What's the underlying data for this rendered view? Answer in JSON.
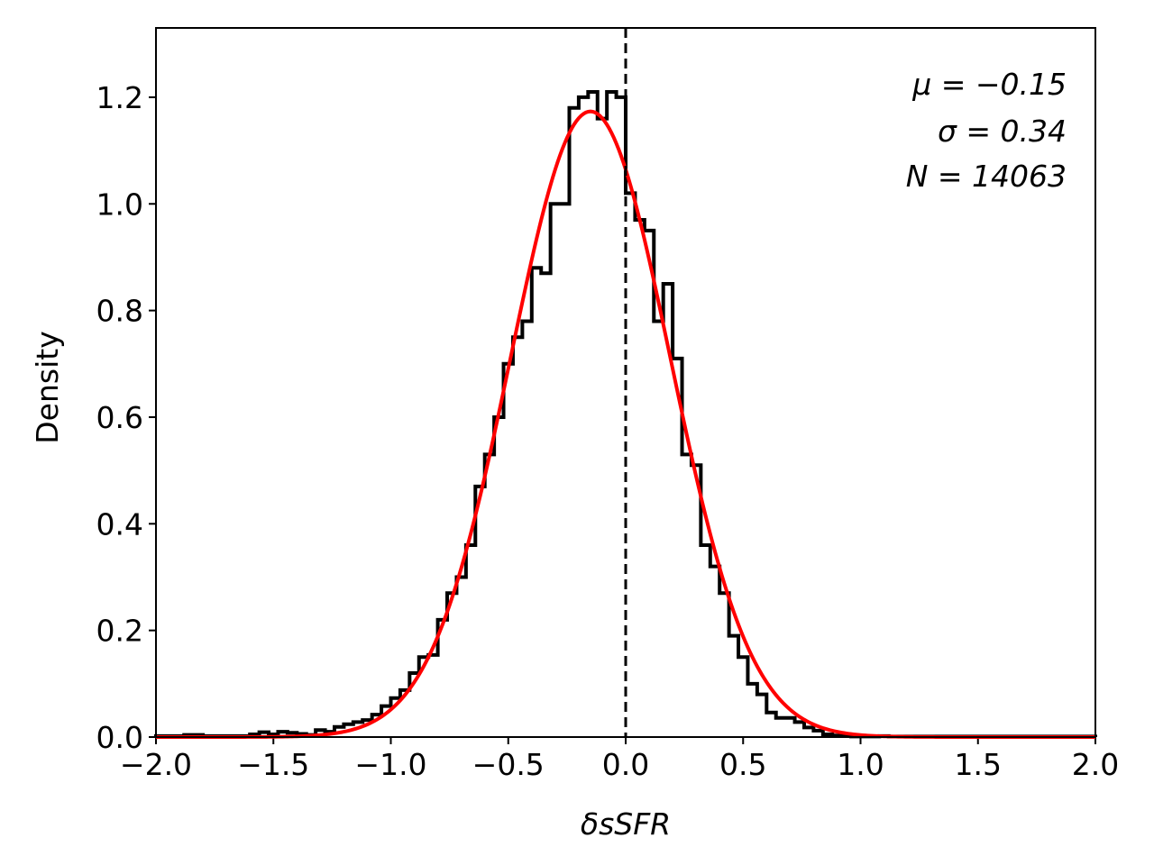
{
  "chart_data": {
    "type": "histogram",
    "xlabel": "δsSFR",
    "ylabel": "Density",
    "xlim": [
      -2.0,
      2.0
    ],
    "ylim": [
      0.0,
      1.33
    ],
    "x_ticks": [
      "−2.0",
      "−1.5",
      "−1.0",
      "−0.5",
      "0.0",
      "0.5",
      "1.0",
      "1.5",
      "2.0"
    ],
    "x_tick_values": [
      -2.0,
      -1.5,
      -1.0,
      -0.5,
      0.0,
      0.5,
      1.0,
      1.5,
      2.0
    ],
    "y_ticks": [
      "0.0",
      "0.2",
      "0.4",
      "0.6",
      "0.8",
      "1.0",
      "1.2"
    ],
    "y_tick_values": [
      0.0,
      0.2,
      0.4,
      0.6,
      0.8,
      1.0,
      1.2
    ],
    "grid": false,
    "annotations": [
      "μ = −0.15",
      "σ = 0.34",
      "N = 14063"
    ],
    "reference_line": {
      "x": 0.0,
      "style": "dashed",
      "color": "#000000"
    },
    "histogram": {
      "color": "#000000",
      "bin_edges": [
        -2.0,
        -1.96,
        -1.92,
        -1.88,
        -1.84,
        -1.8,
        -1.76,
        -1.72,
        -1.68,
        -1.64,
        -1.6,
        -1.56,
        -1.52,
        -1.48,
        -1.44,
        -1.4,
        -1.36,
        -1.32,
        -1.28,
        -1.24,
        -1.2,
        -1.16,
        -1.12,
        -1.08,
        -1.04,
        -1.0,
        -0.96,
        -0.92,
        -0.88,
        -0.84,
        -0.8,
        -0.76,
        -0.72,
        -0.68,
        -0.64,
        -0.6,
        -0.56,
        -0.52,
        -0.48,
        -0.44,
        -0.4,
        -0.36,
        -0.32,
        -0.28,
        -0.24,
        -0.2,
        -0.16,
        -0.12,
        -0.08,
        -0.04,
        0.0,
        0.04,
        0.08,
        0.12,
        0.16,
        0.2,
        0.24,
        0.28,
        0.32,
        0.36,
        0.4,
        0.44,
        0.48,
        0.52,
        0.56,
        0.6,
        0.64,
        0.68,
        0.72,
        0.76,
        0.8,
        0.84,
        0.88,
        0.92,
        0.96,
        1.0,
        1.04,
        1.08,
        1.12,
        1.16,
        1.2,
        1.24,
        1.28,
        1.32,
        1.36,
        1.4,
        1.44,
        1.48,
        1.52,
        1.56,
        1.6,
        1.64,
        1.68,
        1.72,
        1.76,
        1.8,
        1.84,
        1.88,
        1.92,
        1.96,
        2.0
      ],
      "densities": [
        0.002,
        0.002,
        0.002,
        0.004,
        0.004,
        0.002,
        0.002,
        0.002,
        0.002,
        0.002,
        0.005,
        0.009,
        0.005,
        0.01,
        0.008,
        0.006,
        0.004,
        0.013,
        0.01,
        0.019,
        0.024,
        0.028,
        0.032,
        0.042,
        0.058,
        0.073,
        0.088,
        0.12,
        0.15,
        0.154,
        0.22,
        0.27,
        0.3,
        0.36,
        0.47,
        0.53,
        0.6,
        0.7,
        0.75,
        0.78,
        0.88,
        0.87,
        1.0,
        1.0,
        1.18,
        1.2,
        1.21,
        1.16,
        1.21,
        1.2,
        1.02,
        0.97,
        0.95,
        0.78,
        0.85,
        0.71,
        0.53,
        0.51,
        0.36,
        0.32,
        0.27,
        0.19,
        0.15,
        0.1,
        0.08,
        0.046,
        0.036,
        0.036,
        0.028,
        0.018,
        0.012,
        0.005,
        0.003,
        0.002,
        0.001,
        0.001,
        0.001,
        0.002,
        0.001,
        0.001,
        0.001,
        0.001,
        0.001,
        0.001,
        0.001,
        0.001,
        0.001,
        0.001,
        0.001,
        0.001,
        0.001,
        0.001,
        0.001,
        0.001,
        0.001,
        0.001,
        0.001,
        0.001,
        0.001,
        0.001
      ]
    },
    "gaussian_fit": {
      "color": "#ff0000",
      "mu": -0.15,
      "sigma": 0.34
    }
  }
}
